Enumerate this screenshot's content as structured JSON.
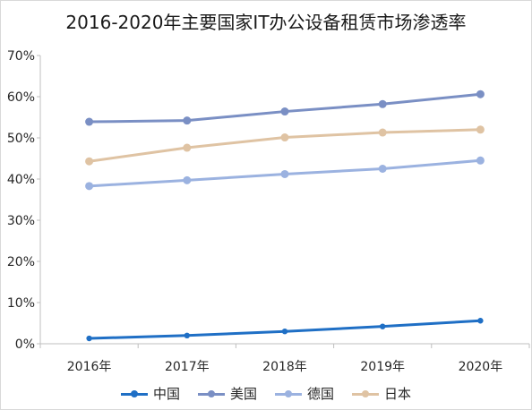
{
  "chart_data": {
    "type": "line",
    "title": "2016-2020年主要国家IT办公设备租赁市场渗透率",
    "categories": [
      "2016年",
      "2017年",
      "2018年",
      "2019年",
      "2020年"
    ],
    "ylim": [
      0,
      70
    ],
    "yticks": [
      "0%",
      "10%",
      "20%",
      "30%",
      "40%",
      "50%",
      "60%",
      "70%"
    ],
    "ytick_values": [
      0,
      10,
      20,
      30,
      40,
      50,
      60,
      70
    ],
    "grid": false,
    "legend_position": "bottom",
    "series": [
      {
        "name": "中国",
        "color": "#1f6fc5",
        "values": [
          1.3,
          2.0,
          3.0,
          4.2,
          5.6
        ]
      },
      {
        "name": "美国",
        "color": "#7a8fc4",
        "values": [
          53.9,
          54.2,
          56.4,
          58.2,
          60.6
        ]
      },
      {
        "name": "德国",
        "color": "#9bb2e0",
        "values": [
          38.3,
          39.7,
          41.2,
          42.5,
          44.5
        ]
      },
      {
        "name": "日本",
        "color": "#dfc3a3",
        "values": [
          44.3,
          47.6,
          50.1,
          51.3,
          52.0
        ]
      }
    ]
  }
}
